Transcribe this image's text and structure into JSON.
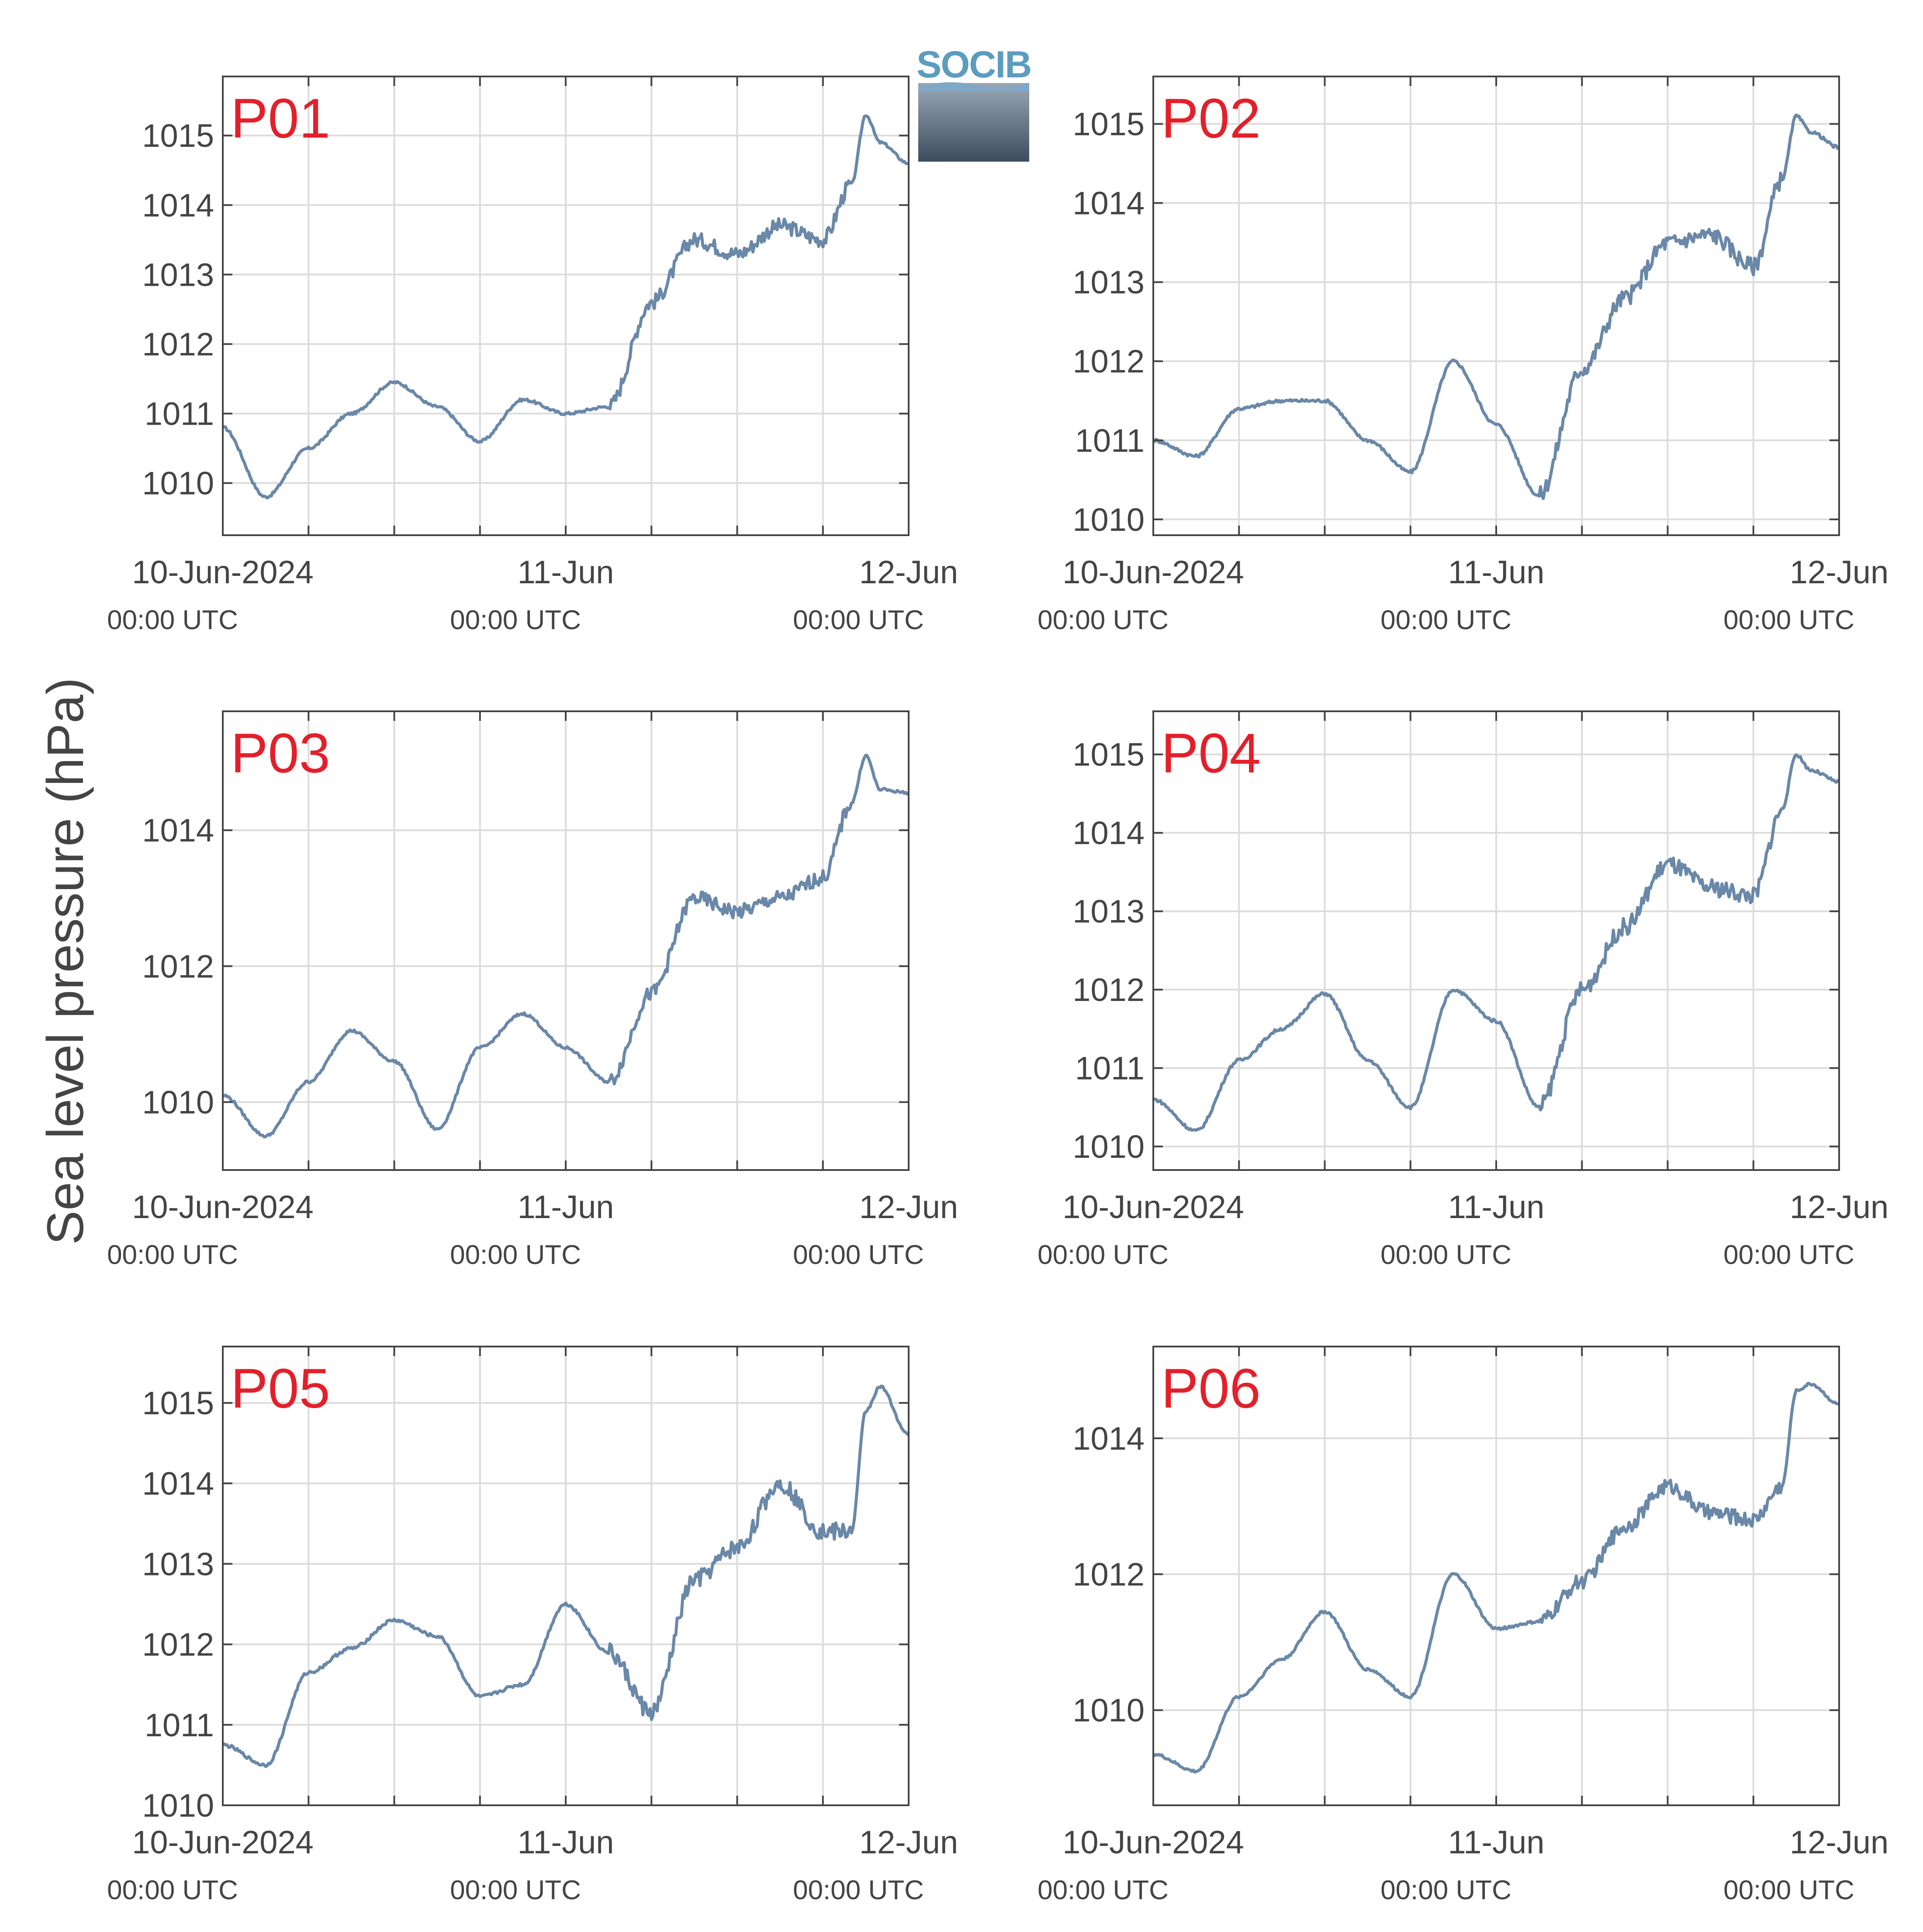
{
  "figure": {
    "ylabel": "Sea level pressure (hPa)",
    "logo_text": "SOCIB",
    "colors": {
      "line": "#6a88a8",
      "panel_label": "#e3202a",
      "grid": "#dcdcdc",
      "axis": "#444444",
      "tick_text": "#444444"
    }
  },
  "chart_data": [
    {
      "type": "line",
      "panel_label": "P01",
      "xlim": [
        "2024-06-10 00:00",
        "2024-06-12 00:00"
      ],
      "ylim": [
        1009.25,
        1015.85
      ],
      "yticks": [
        1010,
        1011,
        1012,
        1013,
        1014,
        1015
      ],
      "xticks": [
        {
          "major": "10-Jun-2024",
          "minor": "00:00 UTC"
        },
        {
          "major": "11-Jun",
          "minor": "00:00 UTC"
        },
        {
          "major": "12-Jun",
          "minor": "00:00 UTC"
        }
      ],
      "grid": true,
      "series": [
        {
          "x": [
            "2024-06-10 00:00",
            "2024-06-10 03:00",
            "2024-06-10 06:00",
            "2024-06-10 09:00",
            "2024-06-10 12:00",
            "2024-06-10 15:00",
            "2024-06-10 18:00",
            "2024-06-10 21:00",
            "2024-06-11 00:00",
            "2024-06-11 03:00",
            "2024-06-11 06:00",
            "2024-06-11 09:00",
            "2024-06-11 12:00",
            "2024-06-11 15:00",
            "2024-06-11 18:00",
            "2024-06-11 20:00",
            "2024-06-11 21:00",
            "2024-06-11 22:00",
            "2024-06-12 00:00"
          ],
          "y": [
            1010.8,
            1009.8,
            1010.5,
            1011.0,
            1011.45,
            1011.1,
            1010.6,
            1011.2,
            1011.0,
            1011.1,
            1012.6,
            1013.5,
            1013.3,
            1013.7,
            1013.5,
            1014.3,
            1015.3,
            1014.9,
            1014.6
          ]
        }
      ]
    },
    {
      "type": "line",
      "panel_label": "P02",
      "xlim": [
        "2024-06-10 00:00",
        "2024-06-12 00:00"
      ],
      "ylim": [
        1009.8,
        1015.6
      ],
      "yticks": [
        1010,
        1011,
        1012,
        1013,
        1014,
        1015
      ],
      "xticks": [
        {
          "major": "10-Jun-2024",
          "minor": "00:00 UTC"
        },
        {
          "major": "11-Jun",
          "minor": "00:00 UTC"
        },
        {
          "major": "12-Jun",
          "minor": "00:00 UTC"
        }
      ],
      "grid": true,
      "series": [
        {
          "x": [
            "2024-06-10 00:00",
            "2024-06-10 03:00",
            "2024-06-10 06:00",
            "2024-06-10 09:00",
            "2024-06-10 12:00",
            "2024-06-10 15:00",
            "2024-06-10 18:00",
            "2024-06-10 21:00",
            "2024-06-11 00:00",
            "2024-06-11 03:00",
            "2024-06-11 06:00",
            "2024-06-11 09:00",
            "2024-06-11 12:00",
            "2024-06-11 15:00",
            "2024-06-11 18:00",
            "2024-06-11 20:00",
            "2024-06-11 21:00",
            "2024-06-11 22:00",
            "2024-06-12 00:00"
          ],
          "y": [
            1011.0,
            1010.8,
            1011.4,
            1011.5,
            1011.5,
            1011.0,
            1010.6,
            1012.0,
            1011.2,
            1010.3,
            1011.9,
            1012.8,
            1013.5,
            1013.6,
            1013.2,
            1014.3,
            1015.1,
            1014.9,
            1014.7
          ]
        }
      ]
    },
    {
      "type": "line",
      "panel_label": "P03",
      "xlim": [
        "2024-06-10 00:00",
        "2024-06-12 00:00"
      ],
      "ylim": [
        1009.0,
        1015.75
      ],
      "yticks": [
        1010,
        1012,
        1014
      ],
      "xticks": [
        {
          "major": "10-Jun-2024",
          "minor": "00:00 UTC"
        },
        {
          "major": "11-Jun",
          "minor": "00:00 UTC"
        },
        {
          "major": "12-Jun",
          "minor": "00:00 UTC"
        }
      ],
      "grid": true,
      "series": [
        {
          "x": [
            "2024-06-10 00:00",
            "2024-06-10 03:00",
            "2024-06-10 06:00",
            "2024-06-10 09:00",
            "2024-06-10 12:00",
            "2024-06-10 15:00",
            "2024-06-10 18:00",
            "2024-06-10 21:00",
            "2024-06-11 00:00",
            "2024-06-11 03:00",
            "2024-06-11 06:00",
            "2024-06-11 09:00",
            "2024-06-11 12:00",
            "2024-06-11 15:00",
            "2024-06-11 18:00",
            "2024-06-11 20:00",
            "2024-06-11 21:00",
            "2024-06-11 22:00",
            "2024-06-12 00:00"
          ],
          "y": [
            1010.1,
            1009.5,
            1010.3,
            1011.05,
            1010.6,
            1009.6,
            1010.8,
            1011.3,
            1010.8,
            1010.3,
            1011.6,
            1013.0,
            1012.8,
            1013.0,
            1013.3,
            1014.4,
            1015.1,
            1014.6,
            1014.55
          ]
        }
      ]
    },
    {
      "type": "line",
      "panel_label": "P04",
      "xlim": [
        "2024-06-10 00:00",
        "2024-06-12 00:00"
      ],
      "ylim": [
        1009.7,
        1015.55
      ],
      "yticks": [
        1010,
        1011,
        1012,
        1013,
        1014,
        1015
      ],
      "xticks": [
        {
          "major": "10-Jun-2024",
          "minor": "00:00 UTC"
        },
        {
          "major": "11-Jun",
          "minor": "00:00 UTC"
        },
        {
          "major": "12-Jun",
          "minor": "00:00 UTC"
        }
      ],
      "grid": true,
      "series": [
        {
          "x": [
            "2024-06-10 00:00",
            "2024-06-10 03:00",
            "2024-06-10 06:00",
            "2024-06-10 09:00",
            "2024-06-10 12:00",
            "2024-06-10 15:00",
            "2024-06-10 18:00",
            "2024-06-10 21:00",
            "2024-06-11 00:00",
            "2024-06-11 03:00",
            "2024-06-11 06:00",
            "2024-06-11 09:00",
            "2024-06-11 12:00",
            "2024-06-11 15:00",
            "2024-06-11 18:00",
            "2024-06-11 20:00",
            "2024-06-11 21:00",
            "2024-06-11 22:00",
            "2024-06-12 00:00"
          ],
          "y": [
            1010.6,
            1010.2,
            1011.1,
            1011.5,
            1011.95,
            1011.1,
            1010.5,
            1012.0,
            1011.6,
            1010.5,
            1012.0,
            1012.8,
            1013.6,
            1013.3,
            1013.2,
            1014.3,
            1015.0,
            1014.8,
            1014.65
          ]
        }
      ]
    },
    {
      "type": "line",
      "panel_label": "P05",
      "xlim": [
        "2024-06-10 00:00",
        "2024-06-12 00:00"
      ],
      "ylim": [
        1010.0,
        1015.7
      ],
      "yticks": [
        1010,
        1011,
        1012,
        1013,
        1014,
        1015
      ],
      "xticks": [
        {
          "major": "10-Jun-2024",
          "minor": "00:00 UTC"
        },
        {
          "major": "11-Jun",
          "minor": "00:00 UTC"
        },
        {
          "major": "12-Jun",
          "minor": "00:00 UTC"
        }
      ],
      "grid": true,
      "series": [
        {
          "x": [
            "2024-06-10 00:00",
            "2024-06-10 03:00",
            "2024-06-10 06:00",
            "2024-06-10 09:00",
            "2024-06-10 12:00",
            "2024-06-10 15:00",
            "2024-06-10 18:00",
            "2024-06-10 21:00",
            "2024-06-11 00:00",
            "2024-06-11 03:00",
            "2024-06-11 06:00",
            "2024-06-11 09:00",
            "2024-06-11 12:00",
            "2024-06-11 15:00",
            "2024-06-11 18:00",
            "2024-06-11 20:00",
            "2024-06-11 21:00",
            "2024-06-11 22:00",
            "2024-06-12 00:00"
          ],
          "y": [
            1010.75,
            1010.5,
            1011.65,
            1011.95,
            1012.3,
            1012.1,
            1011.35,
            1011.5,
            1012.5,
            1011.9,
            1011.15,
            1012.8,
            1013.2,
            1014.0,
            1013.4,
            1013.4,
            1014.9,
            1015.2,
            1014.6
          ]
        }
      ]
    },
    {
      "type": "line",
      "panel_label": "P06",
      "xlim": [
        "2024-06-10 00:00",
        "2024-06-12 00:00"
      ],
      "ylim": [
        1008.6,
        1015.35
      ],
      "yticks": [
        1010,
        1012,
        1014
      ],
      "xticks": [
        {
          "major": "10-Jun-2024",
          "minor": "00:00 UTC"
        },
        {
          "major": "11-Jun",
          "minor": "00:00 UTC"
        },
        {
          "major": "12-Jun",
          "minor": "00:00 UTC"
        }
      ],
      "grid": true,
      "series": [
        {
          "x": [
            "2024-06-10 00:00",
            "2024-06-10 03:00",
            "2024-06-10 06:00",
            "2024-06-10 09:00",
            "2024-06-10 12:00",
            "2024-06-10 15:00",
            "2024-06-10 18:00",
            "2024-06-10 21:00",
            "2024-06-11 00:00",
            "2024-06-11 03:00",
            "2024-06-11 06:00",
            "2024-06-11 09:00",
            "2024-06-11 12:00",
            "2024-06-11 15:00",
            "2024-06-11 18:00",
            "2024-06-11 20:00",
            "2024-06-11 21:00",
            "2024-06-11 22:00",
            "2024-06-12 00:00"
          ],
          "y": [
            1009.35,
            1009.1,
            1010.2,
            1010.75,
            1011.45,
            1010.6,
            1010.2,
            1012.0,
            1011.2,
            1011.3,
            1011.9,
            1012.7,
            1013.3,
            1012.9,
            1012.8,
            1013.3,
            1014.7,
            1014.8,
            1014.5
          ]
        }
      ]
    }
  ]
}
